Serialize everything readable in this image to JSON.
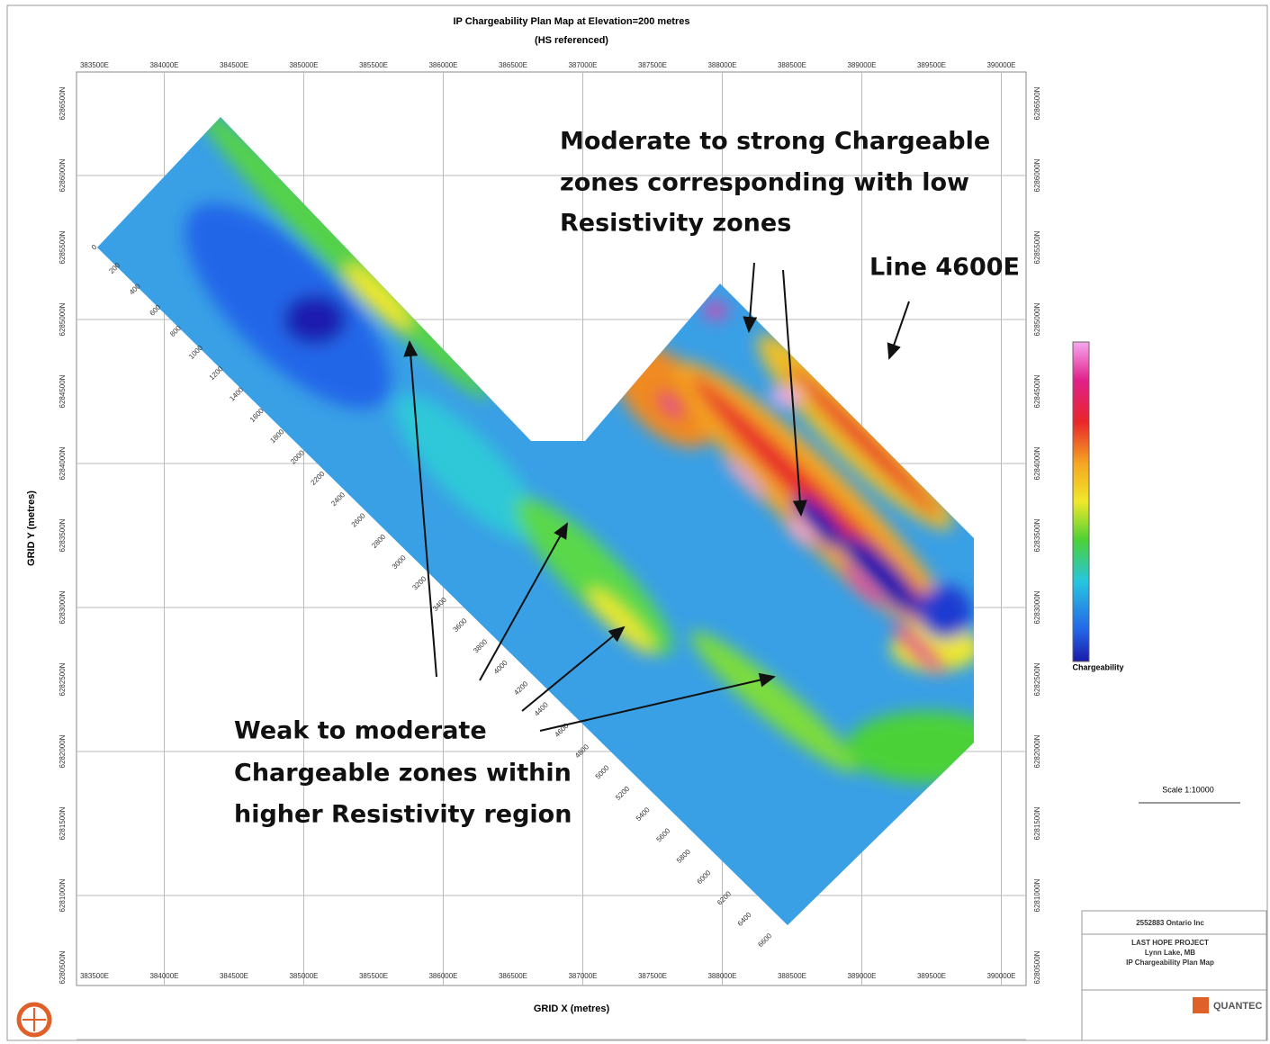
{
  "header": {
    "title": "IP Chargeability Plan Map at Elevation=200 metres",
    "subtitle": "(HS referenced)"
  },
  "axes": {
    "x_label": "GRID X (metres)",
    "y_label": "GRID Y (metres)",
    "x_ticks": [
      "383500E",
      "384000E",
      "384500E",
      "385000E",
      "385500E",
      "386000E",
      "386500E",
      "387000E",
      "387500E",
      "388000E",
      "388500E",
      "389000E",
      "389500E",
      "390000E"
    ],
    "y_ticks": [
      "6286500N",
      "6286000N",
      "6285500N",
      "6285000N",
      "6284500N",
      "6284000N",
      "6283500N",
      "6283000N",
      "6282500N",
      "6282000N",
      "6281500N",
      "6281000N",
      "6280500N"
    ]
  },
  "stations": [
    "0",
    "200",
    "400",
    "600",
    "800",
    "1000",
    "1200",
    "1400",
    "1600",
    "1800",
    "2000",
    "2200",
    "2400",
    "2600",
    "2800",
    "3000",
    "3200",
    "3400",
    "3600",
    "3800",
    "4000",
    "4200",
    "4400",
    "4600",
    "4800",
    "5000",
    "5200",
    "5400",
    "5600",
    "5800",
    "6000",
    "6200",
    "6400",
    "6600"
  ],
  "annotations": {
    "strong": [
      "Moderate to strong Chargeable",
      "zones corresponding with low",
      "Resistivity zones"
    ],
    "line": "Line 4600E",
    "weak": [
      "Weak to moderate",
      "Chargeable zones within",
      "higher Resistivity region"
    ]
  },
  "legend": {
    "label": "Chargeability"
  },
  "scale": "Scale 1:10000",
  "title_block": {
    "company": "2552883 Ontario Inc",
    "project": "LAST HOPE PROJECT",
    "location": "Lynn Lake, MB",
    "map": "IP Chargeability Plan Map",
    "logo": "QUANTEC"
  }
}
